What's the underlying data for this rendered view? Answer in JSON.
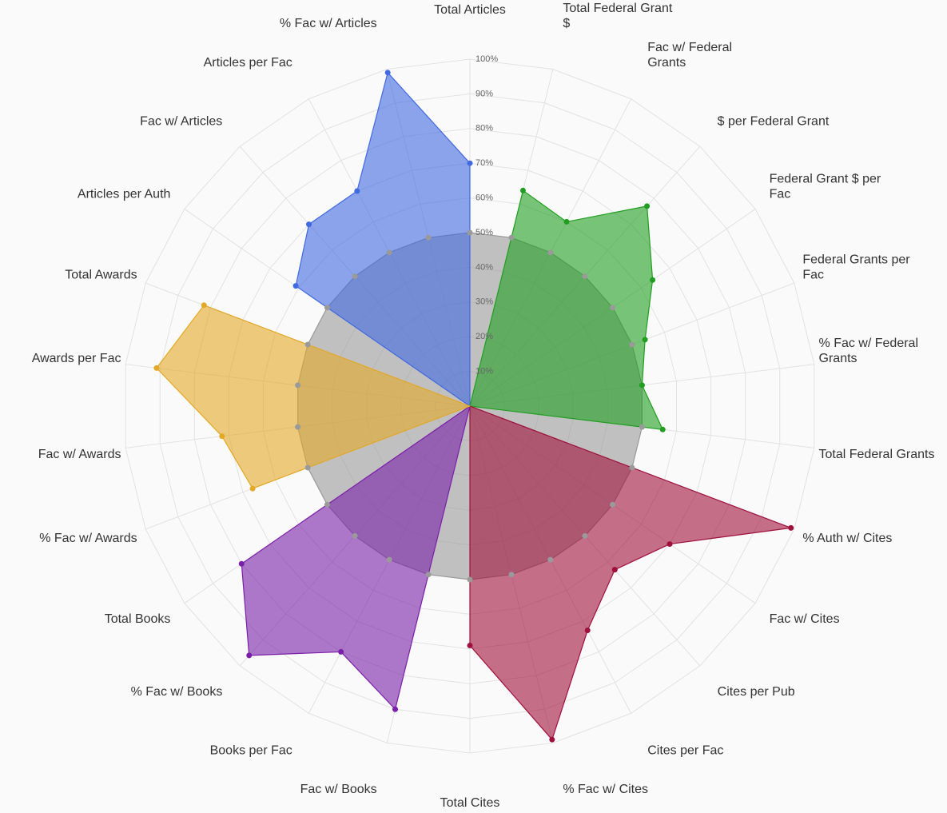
{
  "chart_data": {
    "type": "radar",
    "labels": [
      [
        "Total Articles"
      ],
      [
        "Total Federal Grant",
        "$"
      ],
      [
        "Fac w/ Federal",
        "Grants"
      ],
      [
        "$ per Federal Grant"
      ],
      [
        "Federal Grant $ per",
        "Fac"
      ],
      [
        "Federal Grants per",
        "Fac"
      ],
      [
        "% Fac w/ Federal",
        "Grants"
      ],
      [
        "Total Federal Grants"
      ],
      [
        "% Auth w/ Cites"
      ],
      [
        "Fac w/ Cites"
      ],
      [
        "Cites per Pub"
      ],
      [
        "Cites per Fac"
      ],
      [
        "% Fac w/ Cites"
      ],
      [
        "Total Cites"
      ],
      [
        "Fac w/ Books"
      ],
      [
        "Books per Fac"
      ],
      [
        "% Fac w/ Books"
      ],
      [
        "Total Books"
      ],
      [
        "% Fac w/ Awards"
      ],
      [
        "Fac w/ Awards"
      ],
      [
        "Awards per Fac"
      ],
      [
        "Total Awards"
      ],
      [
        "Articles per Auth"
      ],
      [
        "Fac w/ Articles"
      ],
      [
        "Articles per Fac"
      ],
      [
        "% Fac w/ Articles"
      ]
    ],
    "rlim": [
      0,
      100
    ],
    "rticks": [
      {
        "value": 10,
        "label": "10%"
      },
      {
        "value": 20,
        "label": "20%"
      },
      {
        "value": 30,
        "label": "30%"
      },
      {
        "value": 40,
        "label": "40%"
      },
      {
        "value": 50,
        "label": "50%"
      },
      {
        "value": 60,
        "label": "60%"
      },
      {
        "value": 70,
        "label": "70%"
      },
      {
        "value": 80,
        "label": "80%"
      },
      {
        "value": 90,
        "label": "90%"
      },
      {
        "value": 100,
        "label": "100%"
      }
    ],
    "grid": true,
    "series": [
      {
        "color": "#9a9a9a",
        "values": [
          50,
          50,
          50,
          50,
          50,
          50,
          50,
          50,
          50,
          50,
          50,
          50,
          50,
          50,
          50,
          50,
          50,
          50,
          50,
          50,
          50,
          50,
          50,
          50,
          50,
          50
        ]
      },
      {
        "color": "#4169e1",
        "values": [
          70,
          0,
          0,
          0,
          0,
          0,
          0,
          0,
          0,
          0,
          0,
          0,
          0,
          0,
          0,
          0,
          0,
          0,
          0,
          0,
          0,
          0,
          61,
          70,
          70,
          99
        ]
      },
      {
        "color": "#1f9e1f",
        "values": [
          0,
          64,
          60,
          77,
          64,
          54,
          50,
          56,
          0,
          0,
          0,
          0,
          0,
          0,
          0,
          0,
          0,
          0,
          0,
          0,
          0,
          0,
          0,
          0,
          0,
          0
        ]
      },
      {
        "color": "#a0103c",
        "values": [
          0,
          0,
          0,
          0,
          0,
          0,
          0,
          0,
          99,
          70,
          63,
          73,
          99,
          69,
          0,
          0,
          0,
          0,
          0,
          0,
          0,
          0,
          0,
          0,
          0,
          0
        ]
      },
      {
        "color": "#7a1fa8",
        "values": [
          0,
          0,
          0,
          0,
          0,
          0,
          0,
          0,
          0,
          0,
          0,
          0,
          0,
          0,
          90,
          80,
          96,
          80,
          0,
          0,
          0,
          0,
          0,
          0,
          0,
          0
        ]
      },
      {
        "color": "#e3a826",
        "values": [
          0,
          0,
          0,
          0,
          0,
          0,
          0,
          0,
          0,
          0,
          0,
          0,
          0,
          0,
          0,
          0,
          0,
          0,
          67,
          72,
          91,
          82,
          0,
          0,
          0,
          0
        ]
      }
    ]
  }
}
